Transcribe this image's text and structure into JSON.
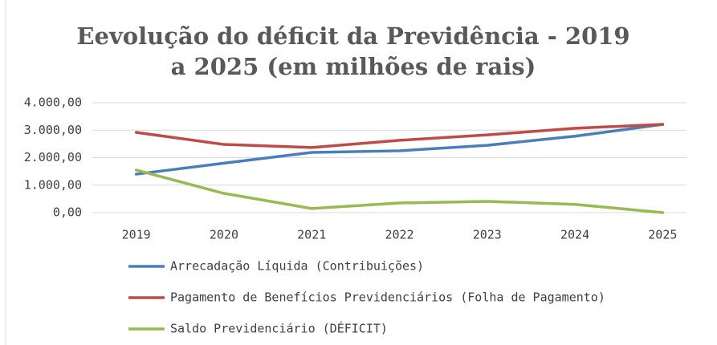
{
  "chart_data": {
    "type": "line",
    "title": "Eevolução do déficit da Previdência - 2019 a 2025  (em milhões de rais)",
    "categories": [
      "2019",
      "2020",
      "2021",
      "2022",
      "2023",
      "2024",
      "2025"
    ],
    "series": [
      {
        "name": "Arrecadação Líquida (Contribuições)",
        "color": "#4a7ebb",
        "values": [
          1400,
          1800,
          2190,
          2250,
          2450,
          2780,
          3210
        ]
      },
      {
        "name": "Pagamento de Benefícios Previdenciários (Folha de Pagamento)",
        "color": "#be4b48",
        "values": [
          2920,
          2480,
          2370,
          2630,
          2830,
          3070,
          3210
        ]
      },
      {
        "name": "Saldo Previdenciário (DÉFICIT)",
        "color": "#98b954",
        "values": [
          1550,
          700,
          150,
          350,
          410,
          300,
          0
        ]
      }
    ],
    "ylim": [
      0,
      4000
    ],
    "yticks": [
      {
        "value": 0,
        "label": "0,00"
      },
      {
        "value": 1000,
        "label": "1.000,00"
      },
      {
        "value": 2000,
        "label": "2.000,00"
      },
      {
        "value": 3000,
        "label": "3.000,00"
      },
      {
        "value": 4000,
        "label": "4.000,00"
      }
    ],
    "grid": true,
    "legend": "bottom"
  }
}
